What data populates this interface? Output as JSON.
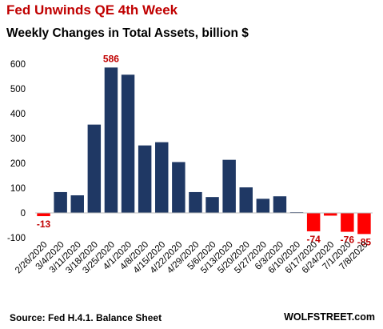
{
  "chart_data": {
    "type": "bar",
    "title": "Fed Unwinds QE 4th Week",
    "subtitle": "Weekly Changes in Total Assets, billion $",
    "categories": [
      "2/26/2020",
      "3/4/2020",
      "3/11/2020",
      "3/18/2020",
      "3/25/2020",
      "4/1/2020",
      "4/8/2020",
      "4/15/2020",
      "4/22/2020",
      "4/29/2020",
      "5/6/2020",
      "5/13/2020",
      "5/20/2020",
      "5/27/2020",
      "6/3/2020",
      "6/10/2020",
      "6/17/2020",
      "6/24/2020",
      "7/1/2020",
      "7/8/2020"
    ],
    "values": [
      -13,
      84,
      71,
      356,
      586,
      557,
      272,
      285,
      205,
      84,
      64,
      214,
      103,
      57,
      67,
      3,
      -74,
      -11,
      -76,
      -85
    ],
    "data_labels": [
      {
        "index": 0,
        "text": "-13"
      },
      {
        "index": 4,
        "text": "586"
      },
      {
        "index": 16,
        "text": "-74"
      },
      {
        "index": 18,
        "text": "-76"
      },
      {
        "index": 19,
        "text": "-85"
      }
    ],
    "ylim": [
      -100,
      600
    ],
    "yticks": [
      600,
      500,
      400,
      300,
      200,
      100,
      0,
      -100
    ],
    "grid": false,
    "legend": "none",
    "positive_color": "#1f3864",
    "negative_color": "#ff0000",
    "label_color": "#c00000"
  },
  "footer": {
    "source": "Source: Fed H.4.1. Balance Sheet",
    "brand": "WOLFSTREET.com"
  }
}
